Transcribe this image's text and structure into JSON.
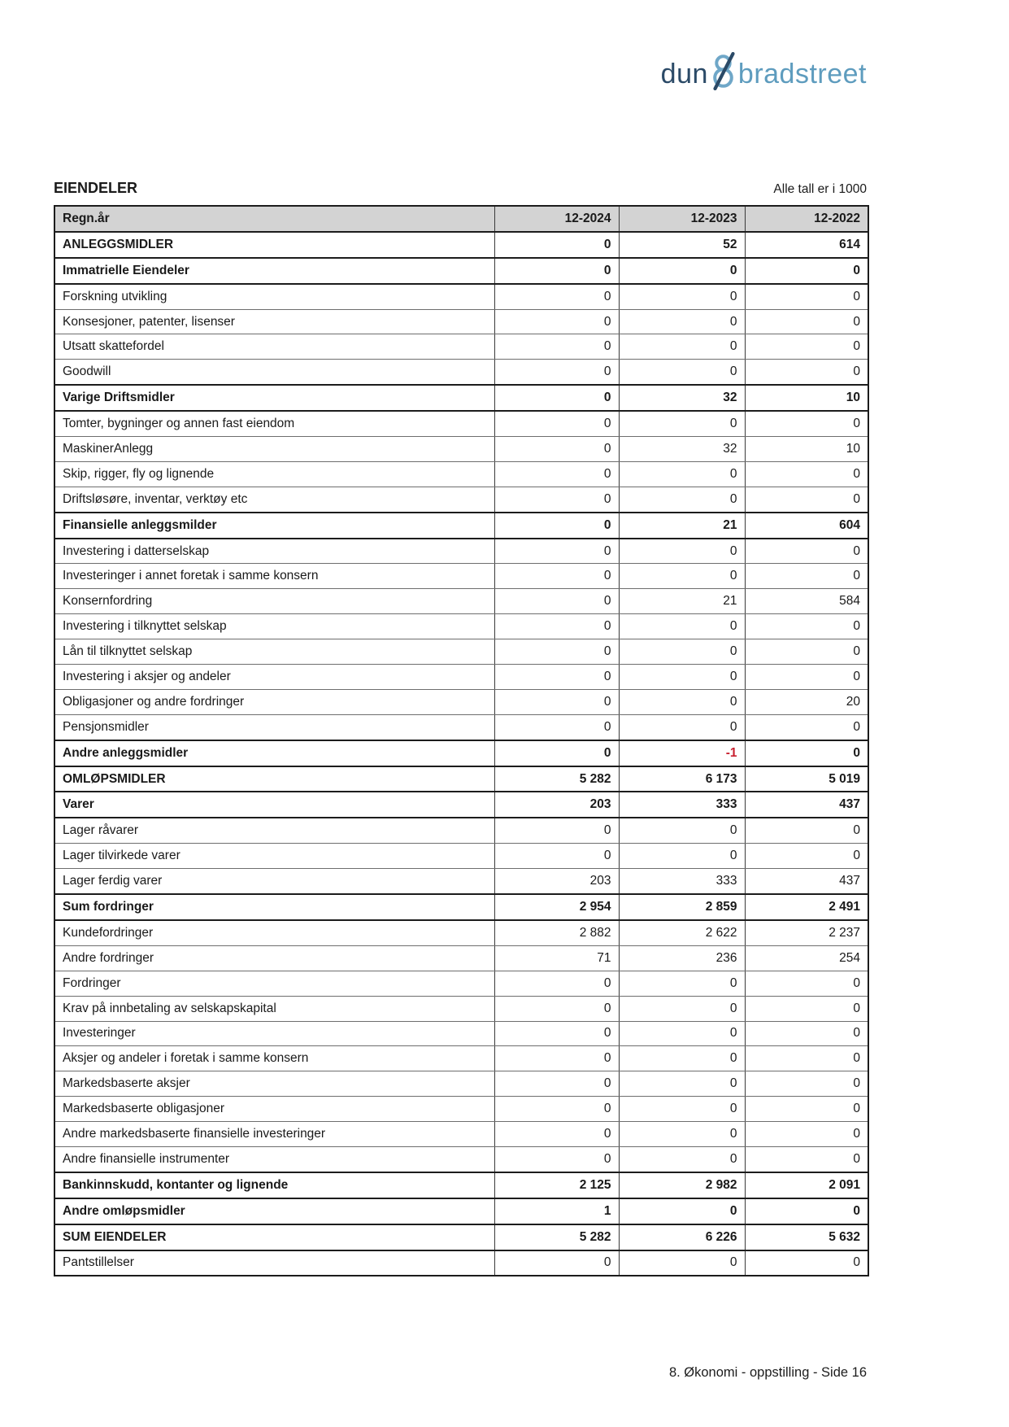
{
  "logo": {
    "dun": "dun",
    "ampersand": "&",
    "bradstreet": "bradstreet"
  },
  "header": {
    "title": "EIENDELER",
    "units_note": "Alle tall er i 1000"
  },
  "table": {
    "header": {
      "label": "Regn.år",
      "cols": [
        "12-2024",
        "12-2023",
        "12-2022"
      ]
    },
    "rows": [
      {
        "label": "ANLEGGSMIDLER",
        "values": [
          "0",
          "52",
          "614"
        ],
        "bold": true
      },
      {
        "label": "Immatrielle Eiendeler",
        "values": [
          "0",
          "0",
          "0"
        ],
        "bold": true
      },
      {
        "label": "Forskning utvikling",
        "values": [
          "0",
          "0",
          "0"
        ],
        "bold": false
      },
      {
        "label": "Konsesjoner, patenter, lisenser",
        "values": [
          "0",
          "0",
          "0"
        ],
        "bold": false
      },
      {
        "label": "Utsatt skattefordel",
        "values": [
          "0",
          "0",
          "0"
        ],
        "bold": false
      },
      {
        "label": "Goodwill",
        "values": [
          "0",
          "0",
          "0"
        ],
        "bold": false
      },
      {
        "label": "Varige Driftsmidler",
        "values": [
          "0",
          "32",
          "10"
        ],
        "bold": true
      },
      {
        "label": "Tomter, bygninger og annen fast eiendom",
        "values": [
          "0",
          "0",
          "0"
        ],
        "bold": false
      },
      {
        "label": "MaskinerAnlegg",
        "values": [
          "0",
          "32",
          "10"
        ],
        "bold": false
      },
      {
        "label": "Skip, rigger, fly og lignende",
        "values": [
          "0",
          "0",
          "0"
        ],
        "bold": false
      },
      {
        "label": "Driftsløsøre, inventar, verktøy etc",
        "values": [
          "0",
          "0",
          "0"
        ],
        "bold": false
      },
      {
        "label": "Finansielle anleggsmilder",
        "values": [
          "0",
          "21",
          "604"
        ],
        "bold": true
      },
      {
        "label": "Investering i datterselskap",
        "values": [
          "0",
          "0",
          "0"
        ],
        "bold": false
      },
      {
        "label": "Investeringer i annet foretak i samme konsern",
        "values": [
          "0",
          "0",
          "0"
        ],
        "bold": false
      },
      {
        "label": "Konsernfordring",
        "values": [
          "0",
          "21",
          "584"
        ],
        "bold": false
      },
      {
        "label": "Investering i tilknyttet selskap",
        "values": [
          "0",
          "0",
          "0"
        ],
        "bold": false
      },
      {
        "label": "Lån til tilknyttet selskap",
        "values": [
          "0",
          "0",
          "0"
        ],
        "bold": false
      },
      {
        "label": "Investering i aksjer og andeler",
        "values": [
          "0",
          "0",
          "0"
        ],
        "bold": false
      },
      {
        "label": "Obligasjoner og andre fordringer",
        "values": [
          "0",
          "0",
          "20"
        ],
        "bold": false
      },
      {
        "label": "Pensjonsmidler",
        "values": [
          "0",
          "0",
          "0"
        ],
        "bold": false
      },
      {
        "label": "Andre anleggsmidler",
        "values": [
          "0",
          "-1",
          "0"
        ],
        "bold": true
      },
      {
        "label": "OMLØPSMIDLER",
        "values": [
          "5 282",
          "6 173",
          "5 019"
        ],
        "bold": true
      },
      {
        "label": "Varer",
        "values": [
          "203",
          "333",
          "437"
        ],
        "bold": true
      },
      {
        "label": "Lager råvarer",
        "values": [
          "0",
          "0",
          "0"
        ],
        "bold": false
      },
      {
        "label": "Lager tilvirkede varer",
        "values": [
          "0",
          "0",
          "0"
        ],
        "bold": false
      },
      {
        "label": "Lager ferdig varer",
        "values": [
          "203",
          "333",
          "437"
        ],
        "bold": false
      },
      {
        "label": "Sum fordringer",
        "values": [
          "2 954",
          "2 859",
          "2 491"
        ],
        "bold": true
      },
      {
        "label": "Kundefordringer",
        "values": [
          "2 882",
          "2 622",
          "2 237"
        ],
        "bold": false
      },
      {
        "label": "Andre fordringer",
        "values": [
          "71",
          "236",
          "254"
        ],
        "bold": false
      },
      {
        "label": "Fordringer",
        "values": [
          "0",
          "0",
          "0"
        ],
        "bold": false
      },
      {
        "label": "Krav på innbetaling av selskapskapital",
        "values": [
          "0",
          "0",
          "0"
        ],
        "bold": false
      },
      {
        "label": "Investeringer",
        "values": [
          "0",
          "0",
          "0"
        ],
        "bold": false
      },
      {
        "label": "Aksjer og andeler i foretak i samme konsern",
        "values": [
          "0",
          "0",
          "0"
        ],
        "bold": false
      },
      {
        "label": "Markedsbaserte aksjer",
        "values": [
          "0",
          "0",
          "0"
        ],
        "bold": false
      },
      {
        "label": "Markedsbaserte obligasjoner",
        "values": [
          "0",
          "0",
          "0"
        ],
        "bold": false
      },
      {
        "label": "Andre markedsbaserte finansielle investeringer",
        "values": [
          "0",
          "0",
          "0"
        ],
        "bold": false
      },
      {
        "label": "Andre finansielle instrumenter",
        "values": [
          "0",
          "0",
          "0"
        ],
        "bold": false
      },
      {
        "label": "Bankinnskudd, kontanter og lignende",
        "values": [
          "2 125",
          "2 982",
          "2 091"
        ],
        "bold": true
      },
      {
        "label": "Andre omløpsmidler",
        "values": [
          "1",
          "0",
          "0"
        ],
        "bold": true
      },
      {
        "label": "SUM EIENDELER",
        "values": [
          "5 282",
          "6 226",
          "5 632"
        ],
        "bold": true
      },
      {
        "label": "Pantstillelser",
        "values": [
          "0",
          "0",
          "0"
        ],
        "bold": false
      }
    ]
  },
  "footer": {
    "text": "8. Økonomi - oppstilling - Side 16"
  },
  "colors": {
    "negative_value": "#c8202f",
    "table_header_bg": "#d3d3d3",
    "logo_dark_blue": "#2b4a67",
    "logo_light_blue": "#5e9cbe",
    "logo_amp_light_blue": "#6fa7c8"
  }
}
